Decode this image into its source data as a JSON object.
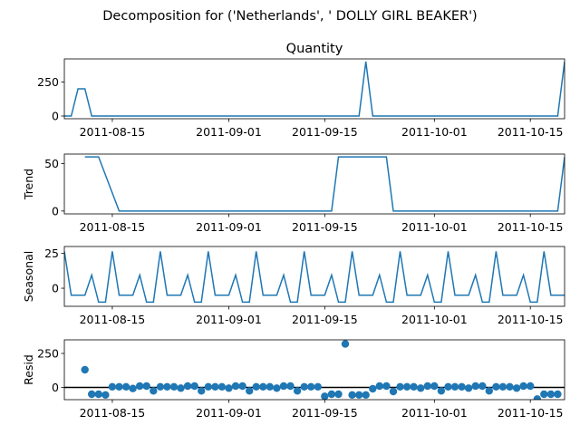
{
  "figure": {
    "suptitle": "Decomposition for ('Netherlands', ' DOLLY GIRL BEAKER')"
  },
  "colors": {
    "line": "#1f77b4",
    "axis": "#000000",
    "zero_line": "#000000"
  },
  "chart_data": [
    {
      "type": "line",
      "title": "Quantity",
      "ylabel": "",
      "x_range": [
        "2011-08-08",
        "2011-10-20"
      ],
      "ylim": [
        -20,
        420
      ],
      "yticks": [
        0,
        250
      ],
      "xticks": [
        "2011-08-15",
        "2011-09-01",
        "2011-09-15",
        "2011-10-01",
        "2011-10-15"
      ],
      "series": [
        {
          "x": [
            "2011-08-08",
            "2011-08-09",
            "2011-08-10",
            "2011-08-11",
            "2011-08-12",
            "2011-08-13",
            "2011-09-20",
            "2011-09-21",
            "2011-09-22",
            "2011-10-19",
            "2011-10-20"
          ],
          "values": [
            0,
            0,
            200,
            200,
            0,
            0,
            0,
            400,
            0,
            0,
            400
          ]
        }
      ]
    },
    {
      "type": "line",
      "title": "",
      "ylabel": "Trend",
      "x_range": [
        "2011-08-08",
        "2011-10-20"
      ],
      "ylim": [
        -3,
        60
      ],
      "yticks": [
        0,
        50
      ],
      "xticks": [
        "2011-08-15",
        "2011-09-01",
        "2011-09-15",
        "2011-10-01",
        "2011-10-15"
      ],
      "series": [
        {
          "x": [
            "2011-08-11",
            "2011-08-13",
            "2011-08-16",
            "2011-09-16",
            "2011-09-17",
            "2011-09-24",
            "2011-09-25",
            "2011-10-19",
            "2011-10-20"
          ],
          "values": [
            57,
            57,
            0,
            0,
            57,
            57,
            0,
            0,
            57
          ]
        }
      ]
    },
    {
      "type": "line",
      "title": "",
      "ylabel": "Seasonal",
      "x_range": [
        "2011-08-08",
        "2011-10-20"
      ],
      "ylim": [
        -13,
        30
      ],
      "yticks": [
        0,
        25
      ],
      "xticks": [
        "2011-08-15",
        "2011-09-01",
        "2011-09-15",
        "2011-10-01",
        "2011-10-15"
      ],
      "period_pattern": [
        26.5,
        -5,
        -5,
        -5,
        9.5,
        -10,
        -10
      ],
      "pattern_start": "2011-08-15",
      "series": [
        {
          "x_start": "2011-08-08",
          "x_end": "2011-10-20",
          "values": []
        }
      ]
    },
    {
      "type": "scatter",
      "title": "",
      "ylabel": "Resid",
      "x_range": [
        "2011-08-08",
        "2011-10-20"
      ],
      "ylim": [
        -90,
        350
      ],
      "yticks": [
        0,
        250
      ],
      "xticks": [
        "2011-08-15",
        "2011-09-01",
        "2011-09-15",
        "2011-10-01",
        "2011-10-15"
      ],
      "zero_line": true,
      "series": [
        {
          "x": [
            "2011-08-11",
            "2011-08-12",
            "2011-08-13",
            "2011-08-14",
            "2011-08-15",
            "2011-08-16",
            "2011-08-17",
            "2011-08-18",
            "2011-08-19",
            "2011-08-20",
            "2011-08-21",
            "2011-08-22",
            "2011-08-23",
            "2011-08-24",
            "2011-08-25",
            "2011-08-26",
            "2011-08-27",
            "2011-08-28",
            "2011-08-29",
            "2011-08-30",
            "2011-08-31",
            "2011-09-01",
            "2011-09-02",
            "2011-09-03",
            "2011-09-04",
            "2011-09-05",
            "2011-09-06",
            "2011-09-07",
            "2011-09-08",
            "2011-09-09",
            "2011-09-10",
            "2011-09-11",
            "2011-09-12",
            "2011-09-13",
            "2011-09-14",
            "2011-09-15",
            "2011-09-16",
            "2011-09-17",
            "2011-09-18",
            "2011-09-19",
            "2011-09-20",
            "2011-09-21",
            "2011-09-22",
            "2011-09-23",
            "2011-09-24",
            "2011-09-25",
            "2011-09-26",
            "2011-09-27",
            "2011-09-28",
            "2011-09-29",
            "2011-09-30",
            "2011-10-01",
            "2011-10-02",
            "2011-10-03",
            "2011-10-04",
            "2011-10-05",
            "2011-10-06",
            "2011-10-07",
            "2011-10-08",
            "2011-10-09",
            "2011-10-10",
            "2011-10-11",
            "2011-10-12",
            "2011-10-13",
            "2011-10-14",
            "2011-10-15",
            "2011-10-16",
            "2011-10-17",
            "2011-10-18",
            "2011-10-19"
          ],
          "values": [
            130,
            -50,
            -50,
            -55,
            5,
            5,
            5,
            -8,
            10,
            10,
            -25,
            5,
            5,
            5,
            -5,
            10,
            10,
            -25,
            5,
            5,
            5,
            -5,
            10,
            10,
            -25,
            5,
            5,
            5,
            -5,
            10,
            10,
            -25,
            5,
            5,
            5,
            -65,
            -50,
            -50,
            320,
            -55,
            -55,
            -55,
            -10,
            10,
            10,
            -30,
            5,
            5,
            5,
            -5,
            10,
            10,
            -25,
            5,
            5,
            5,
            -5,
            10,
            10,
            -25,
            5,
            5,
            5,
            -5,
            10,
            10,
            -85,
            -50,
            -50,
            -50
          ]
        }
      ]
    }
  ]
}
